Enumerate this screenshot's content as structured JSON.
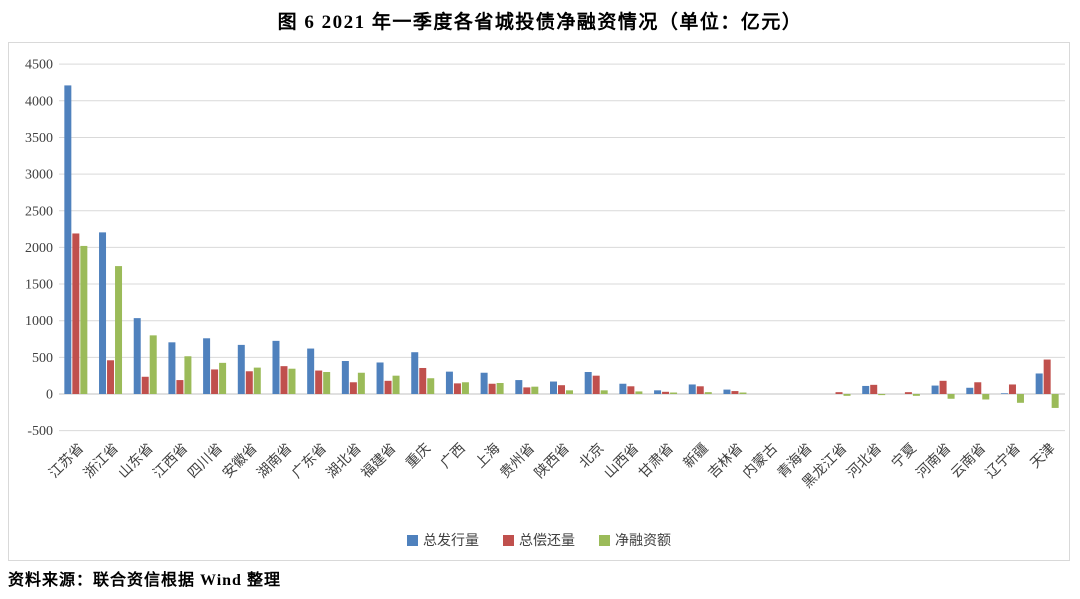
{
  "title": "图 6  2021 年一季度各省城投债净融资情况（单位：亿元）",
  "source_note": "资料来源：联合资信根据 Wind 整理",
  "chart_data": {
    "type": "bar",
    "title": "图 6  2021 年一季度各省城投债净融资情况",
    "unit": "亿元",
    "categories": [
      "江苏省",
      "浙江省",
      "山东省",
      "江西省",
      "四川省",
      "安徽省",
      "湖南省",
      "广东省",
      "湖北省",
      "福建省",
      "重庆",
      "广西",
      "上海",
      "贵州省",
      "陕西省",
      "北京",
      "山西省",
      "甘肃省",
      "新疆",
      "吉林省",
      "内蒙古",
      "青海省",
      "黑龙江省",
      "河北省",
      "宁夏",
      "河南省",
      "云南省",
      "辽宁省",
      "天津"
    ],
    "series": [
      {
        "name": "总发行量",
        "color": "#4F81BD",
        "values": [
          4210,
          2205,
          1035,
          705,
          760,
          670,
          725,
          620,
          450,
          430,
          570,
          305,
          290,
          190,
          170,
          300,
          140,
          50,
          130,
          60,
          0,
          0,
          0,
          110,
          0,
          115,
          85,
          10,
          280
        ]
      },
      {
        "name": "总偿还量",
        "color": "#C0504D",
        "values": [
          2190,
          460,
          235,
          190,
          335,
          310,
          380,
          320,
          160,
          180,
          355,
          145,
          140,
          90,
          120,
          250,
          105,
          30,
          105,
          40,
          0,
          0,
          25,
          125,
          25,
          180,
          160,
          130,
          470
        ]
      },
      {
        "name": "净融资额",
        "color": "#9BBB59",
        "values": [
          2020,
          1745,
          800,
          515,
          425,
          360,
          345,
          300,
          290,
          250,
          215,
          160,
          150,
          100,
          50,
          50,
          35,
          20,
          25,
          20,
          0,
          0,
          -25,
          -15,
          -25,
          -65,
          -75,
          -120,
          -190
        ]
      }
    ],
    "ylim": [
      -500,
      4500
    ],
    "y_ticks": [
      4500,
      4000,
      3500,
      3000,
      2500,
      2000,
      1500,
      1000,
      500,
      0,
      -500
    ],
    "grid": "horizontal",
    "legend_position": "bottom",
    "grid_color": "#d9d9d9",
    "zero_line_color": "#c0c0c0",
    "text_color": "#404040"
  }
}
